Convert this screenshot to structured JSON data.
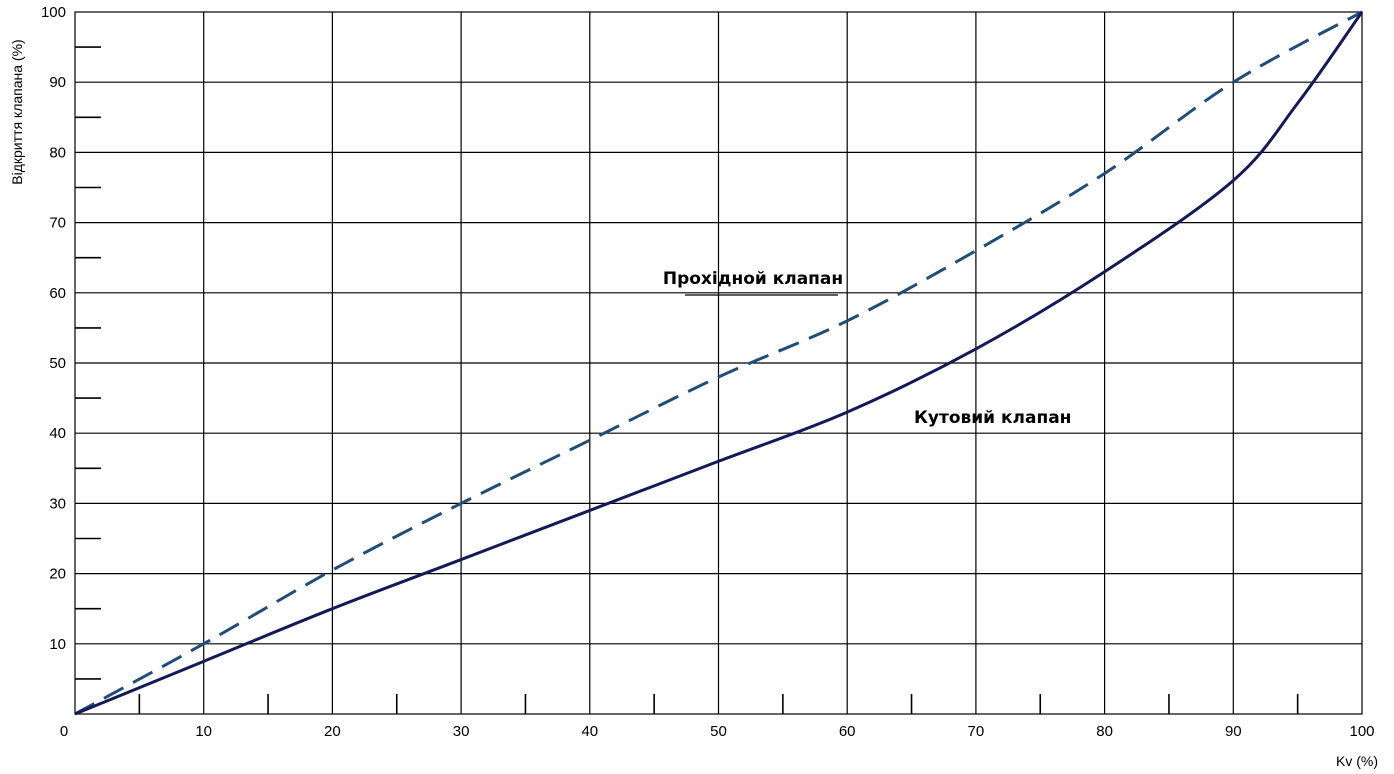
{
  "chart_data": {
    "type": "line",
    "title": "",
    "xlabel": "Kv (%)",
    "ylabel": "Відкриття клапана (%)",
    "xlim": [
      0,
      100
    ],
    "ylim": [
      0,
      100
    ],
    "grid": true,
    "x_ticks": [
      0,
      10,
      20,
      30,
      40,
      50,
      60,
      70,
      80,
      90,
      100
    ],
    "y_ticks": [
      10,
      20,
      30,
      40,
      50,
      60,
      70,
      80,
      90,
      100
    ],
    "x_tick_labels": [
      "0",
      "10",
      "20",
      "30",
      "40",
      "50",
      "60",
      "70",
      "80",
      "90",
      "100"
    ],
    "y_tick_labels": [
      "10",
      "20",
      "30",
      "40",
      "50",
      "60",
      "70",
      "80",
      "90",
      "100"
    ],
    "series": [
      {
        "name": "Прохідной клапан",
        "color": "#1f4e79",
        "style": "dashed",
        "x": [
          0,
          10,
          20,
          30,
          40,
          50,
          60,
          70,
          80,
          90,
          100
        ],
        "y": [
          0,
          10,
          20.5,
          30,
          39,
          48,
          56,
          66,
          77,
          90,
          100
        ]
      },
      {
        "name": "Кутовий клапан",
        "color": "#14195a",
        "style": "solid",
        "x": [
          0,
          10,
          20,
          30,
          40,
          50,
          60,
          70,
          80,
          90,
          95,
          100
        ],
        "y": [
          0,
          7.5,
          15,
          22,
          29,
          36,
          43,
          52,
          63,
          76,
          87,
          100
        ]
      }
    ],
    "annotations": [
      {
        "text": "Прохідной клапан",
        "x": 60,
        "y": 62
      },
      {
        "text": "Кутовий клапан",
        "x": 82,
        "y": 42
      }
    ]
  }
}
